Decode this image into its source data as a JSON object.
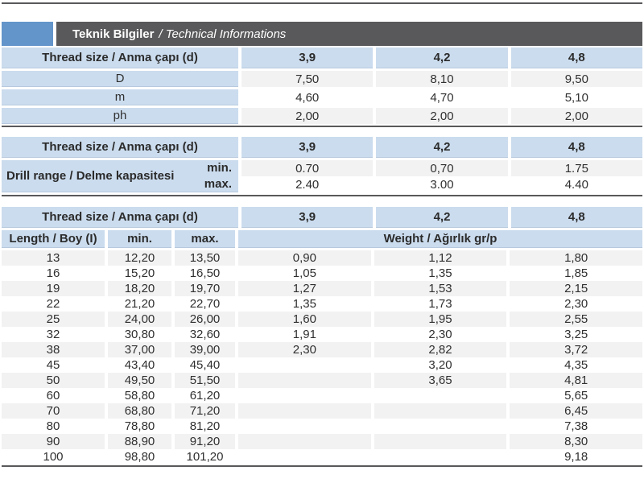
{
  "header": {
    "title_tr": "Teknik Bilgiler",
    "title_en": "/ Technical Informations"
  },
  "colors": {
    "accent_blue": "#6394ca",
    "header_bar_gray": "#59595b",
    "cell_blue": "#cbdcee",
    "stripe_gray": "#f2f2f2",
    "divider_dark": "#59595b"
  },
  "table1": {
    "header_label": "Thread size / Anma çapı (d)",
    "sizes": [
      "3,9",
      "4,2",
      "4,8"
    ],
    "rows": [
      {
        "label": "D",
        "values": [
          "7,50",
          "8,10",
          "9,50"
        ]
      },
      {
        "label": "m",
        "values": [
          "4,60",
          "4,70",
          "5,10"
        ]
      },
      {
        "label": "ph",
        "values": [
          "2,00",
          "2,00",
          "2,00"
        ]
      }
    ]
  },
  "table2": {
    "header_label": "Thread size / Anma çapı (d)",
    "sizes": [
      "3,9",
      "4,2",
      "4,8"
    ],
    "row_label": "Drill range / Delme kapasitesi",
    "min_label": "min.",
    "max_label": "max.",
    "min_values": [
      "0.70",
      "0,70",
      "1.75"
    ],
    "max_values": [
      "2.40",
      "3.00",
      "4.40"
    ]
  },
  "table3": {
    "header_label": "Thread size / Anma çapı (d)",
    "sizes": [
      "3,9",
      "4,2",
      "4,8"
    ],
    "length_label": "Length / Boy (I)",
    "min_label": "min.",
    "max_label": "max.",
    "weight_label": "Weight / Ağırlık gr/p",
    "rows": [
      {
        "length": "13",
        "min": "12,20",
        "max": "13,50",
        "weights": [
          "0,90",
          "1,12",
          "1,80"
        ]
      },
      {
        "length": "16",
        "min": "15,20",
        "max": "16,50",
        "weights": [
          "1,05",
          "1,35",
          "1,85"
        ]
      },
      {
        "length": "19",
        "min": "18,20",
        "max": "19,70",
        "weights": [
          "1,27",
          "1,53",
          "2,15"
        ]
      },
      {
        "length": "22",
        "min": "21,20",
        "max": "22,70",
        "weights": [
          "1,35",
          "1,73",
          "2,30"
        ]
      },
      {
        "length": "25",
        "min": "24,00",
        "max": "26,00",
        "weights": [
          "1,60",
          "1,95",
          "2,55"
        ]
      },
      {
        "length": "32",
        "min": "30,80",
        "max": "32,60",
        "weights": [
          "1,91",
          "2,30",
          "3,25"
        ]
      },
      {
        "length": "38",
        "min": "37,00",
        "max": "39,00",
        "weights": [
          "2,30",
          "2,82",
          "3,72"
        ]
      },
      {
        "length": "45",
        "min": "43,40",
        "max": "45,40",
        "weights": [
          "",
          "3,20",
          "4,35"
        ]
      },
      {
        "length": "50",
        "min": "49,50",
        "max": "51,50",
        "weights": [
          "",
          "3,65",
          "4,81"
        ]
      },
      {
        "length": "60",
        "min": "58,80",
        "max": "61,20",
        "weights": [
          "",
          "",
          "5,65"
        ]
      },
      {
        "length": "70",
        "min": "68,80",
        "max": "71,20",
        "weights": [
          "",
          "",
          "6,45"
        ]
      },
      {
        "length": "80",
        "min": "78,80",
        "max": "81,20",
        "weights": [
          "",
          "",
          "7,38"
        ]
      },
      {
        "length": "90",
        "min": "88,90",
        "max": "91,20",
        "weights": [
          "",
          "",
          "8,30"
        ]
      },
      {
        "length": "100",
        "min": "98,80",
        "max": "101,20",
        "weights": [
          "",
          "",
          "9,18"
        ]
      }
    ]
  }
}
